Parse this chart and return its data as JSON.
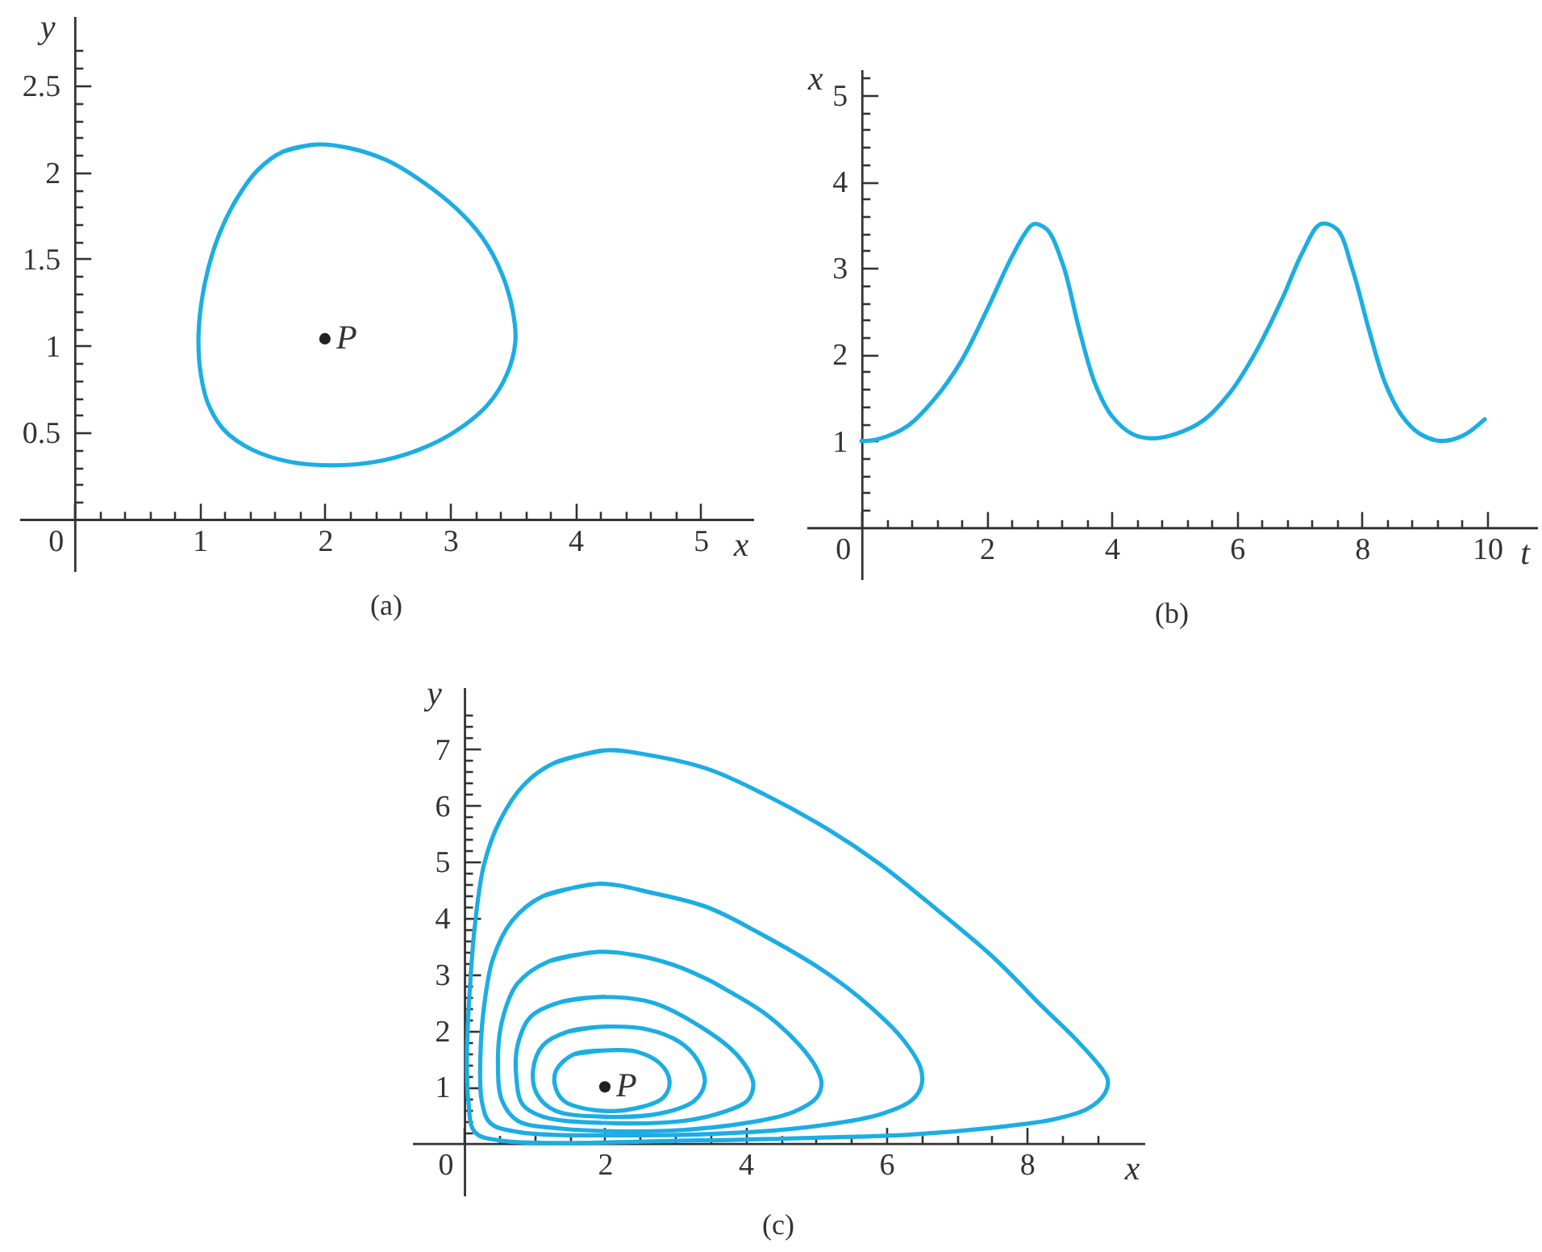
{
  "chart_data": [
    {
      "type": "line",
      "title": "(a)",
      "xlabel": "x",
      "ylabel": "y",
      "xlim": [
        -0.44,
        5.42
      ],
      "ylim": [
        -0.3,
        2.9
      ],
      "xticks": [
        0,
        {
          "value": 0.2,
          "label": null
        },
        {
          "value": 0.4,
          "label": null
        },
        {
          "value": 0.6,
          "label": null
        },
        {
          "value": 0.8,
          "label": null
        },
        1,
        {
          "value": 1.2,
          "label": null
        },
        {
          "value": 1.4,
          "label": null
        },
        {
          "value": 1.6,
          "label": null
        },
        {
          "value": 1.8,
          "label": null
        },
        2,
        {
          "value": 2.2,
          "label": null
        },
        {
          "value": 2.4,
          "label": null
        },
        {
          "value": 2.6,
          "label": null
        },
        {
          "value": 2.8,
          "label": null
        },
        3,
        {
          "value": 3.2,
          "label": null
        },
        {
          "value": 3.4,
          "label": null
        },
        {
          "value": 3.6,
          "label": null
        },
        {
          "value": 3.8,
          "label": null
        },
        4,
        {
          "value": 4.2,
          "label": null
        },
        {
          "value": 4.4,
          "label": null
        },
        {
          "value": 4.6,
          "label": null
        },
        {
          "value": 4.8,
          "label": null
        },
        5
      ],
      "yticks": [
        {
          "value": 0.1,
          "label": null
        },
        {
          "value": 0.2,
          "label": null
        },
        {
          "value": 0.3,
          "label": null
        },
        {
          "value": 0.4,
          "label": null
        },
        0.5,
        {
          "value": 0.6,
          "label": null
        },
        {
          "value": 0.7,
          "label": null
        },
        {
          "value": 0.8,
          "label": null
        },
        {
          "value": 0.9,
          "label": null
        },
        1,
        {
          "value": 1.1,
          "label": null
        },
        {
          "value": 1.2,
          "label": null
        },
        {
          "value": 1.3,
          "label": null
        },
        {
          "value": 1.4,
          "label": null
        },
        1.5,
        {
          "value": 1.6,
          "label": null
        },
        {
          "value": 1.7,
          "label": null
        },
        {
          "value": 1.8,
          "label": null
        },
        {
          "value": 1.9,
          "label": null
        },
        2,
        {
          "value": 2.1,
          "label": null
        },
        {
          "value": 2.2,
          "label": null
        },
        {
          "value": 2.3,
          "label": null
        },
        {
          "value": 2.4,
          "label": null
        },
        2.5,
        {
          "value": 2.6,
          "label": null
        },
        {
          "value": 2.7,
          "label": null
        }
      ],
      "series": [
        {
          "color": "#1cade4",
          "x": [
            1.93,
            1.67,
            1.46,
            1.29,
            1.16,
            1.07,
            1.01,
            0.99,
            1.01,
            1.07,
            1.2,
            1.42,
            1.72,
            2.06,
            2.4,
            2.75,
            3.05,
            3.3,
            3.45,
            3.52,
            3.5,
            3.41,
            3.26,
            3.05,
            2.75,
            2.49,
            2.19,
            1.93,
            1.67
          ],
          "values": [
            2.16,
            2.12,
            2.01,
            1.84,
            1.65,
            1.45,
            1.23,
            1.02,
            0.83,
            0.66,
            0.51,
            0.4,
            0.33,
            0.31,
            0.33,
            0.4,
            0.51,
            0.66,
            0.83,
            1.02,
            1.2,
            1.42,
            1.62,
            1.79,
            1.96,
            2.07,
            2.14,
            2.16,
            2.12
          ]
        },
        {
          "type": "scatter",
          "color": "#231f20",
          "x": [
            2
          ],
          "values": [
            1.04
          ]
        }
      ],
      "annotations": [
        {
          "text": "P",
          "x": 2,
          "y": 1.04
        }
      ]
    },
    {
      "type": "line",
      "title": "(b)",
      "xlabel": "t",
      "ylabel": "x",
      "xlim": [
        -0.88,
        10.8
      ],
      "ylim": [
        -0.6,
        5.3
      ],
      "xticks": [
        0,
        {
          "value": 0.4,
          "label": null
        },
        {
          "value": 0.8,
          "label": null
        },
        {
          "value": 1.2,
          "label": null
        },
        {
          "value": 1.6,
          "label": null
        },
        2,
        {
          "value": 2.4,
          "label": null
        },
        {
          "value": 2.8,
          "label": null
        },
        {
          "value": 3.2,
          "label": null
        },
        {
          "value": 3.6,
          "label": null
        },
        4,
        {
          "value": 4.4,
          "label": null
        },
        {
          "value": 4.8,
          "label": null
        },
        {
          "value": 5.2,
          "label": null
        },
        {
          "value": 5.6,
          "label": null
        },
        6,
        {
          "value": 6.4,
          "label": null
        },
        {
          "value": 6.8,
          "label": null
        },
        {
          "value": 7.2,
          "label": null
        },
        {
          "value": 7.6,
          "label": null
        },
        8,
        {
          "value": 8.4,
          "label": null
        },
        {
          "value": 8.8,
          "label": null
        },
        {
          "value": 9.2,
          "label": null
        },
        {
          "value": 9.6,
          "label": null
        },
        10
      ],
      "yticks": [
        {
          "value": 0.2,
          "label": null
        },
        {
          "value": 0.4,
          "label": null
        },
        {
          "value": 0.6,
          "label": null
        },
        {
          "value": 0.8,
          "label": null
        },
        1,
        {
          "value": 1.2,
          "label": null
        },
        {
          "value": 1.4,
          "label": null
        },
        {
          "value": 1.6,
          "label": null
        },
        {
          "value": 1.8,
          "label": null
        },
        2,
        {
          "value": 2.2,
          "label": null
        },
        {
          "value": 2.4,
          "label": null
        },
        {
          "value": 2.6,
          "label": null
        },
        {
          "value": 2.8,
          "label": null
        },
        3,
        {
          "value": 3.2,
          "label": null
        },
        {
          "value": 3.4,
          "label": null
        },
        {
          "value": 3.6,
          "label": null
        },
        {
          "value": 3.8,
          "label": null
        },
        4,
        {
          "value": 4.2,
          "label": null
        },
        {
          "value": 4.4,
          "label": null
        },
        {
          "value": 4.6,
          "label": null
        },
        {
          "value": 4.8,
          "label": null
        },
        5,
        {
          "value": 5.2,
          "label": null
        }
      ],
      "series": [
        {
          "color": "#1cade4",
          "x": [
            0,
            0.26,
            0.73,
            1.16,
            1.59,
            2.02,
            2.36,
            2.62,
            2.75,
            2.96,
            3.22,
            3.48,
            3.73,
            3.99,
            4.33,
            4.64,
            5.02,
            5.45,
            5.88,
            6.31,
            6.74,
            7.04,
            7.34,
            7.6,
            7.85,
            8.11,
            8.37,
            8.63,
            8.93,
            9.27,
            9.61,
            9.96
          ],
          "values": [
            1.0,
            1.02,
            1.17,
            1.48,
            1.92,
            2.54,
            3.07,
            3.41,
            3.51,
            3.45,
            3.04,
            2.29,
            1.67,
            1.3,
            1.08,
            1.03,
            1.08,
            1.23,
            1.55,
            2.04,
            2.67,
            3.17,
            3.51,
            3.45,
            2.98,
            2.29,
            1.67,
            1.3,
            1.08,
            1.0,
            1.06,
            1.25
          ]
        }
      ]
    },
    {
      "type": "line",
      "title": "(c)",
      "xlabel": "x",
      "ylabel": "y",
      "xlim": [
        -0.74,
        9.67
      ],
      "ylim": [
        -0.93,
        8.1
      ],
      "xticks": [
        0,
        {
          "value": 0.5,
          "label": null
        },
        {
          "value": 1,
          "label": null
        },
        {
          "value": 1.5,
          "label": null
        },
        2,
        {
          "value": 2.5,
          "label": null
        },
        {
          "value": 3,
          "label": null
        },
        {
          "value": 3.5,
          "label": null
        },
        4,
        {
          "value": 4.5,
          "label": null
        },
        {
          "value": 5,
          "label": null
        },
        {
          "value": 5.5,
          "label": null
        },
        6,
        {
          "value": 6.5,
          "label": null
        },
        {
          "value": 7,
          "label": null
        },
        {
          "value": 7.5,
          "label": null
        },
        8,
        {
          "value": 8.5,
          "label": null
        },
        {
          "value": 9,
          "label": null
        }
      ],
      "yticks": [
        {
          "value": 0.2,
          "label": null
        },
        {
          "value": 0.4,
          "label": null
        },
        {
          "value": 0.6,
          "label": null
        },
        {
          "value": 0.8,
          "label": null
        },
        1,
        {
          "value": 1.2,
          "label": null
        },
        {
          "value": 1.4,
          "label": null
        },
        {
          "value": 1.6,
          "label": null
        },
        {
          "value": 1.8,
          "label": null
        },
        2,
        {
          "value": 2.2,
          "label": null
        },
        {
          "value": 2.4,
          "label": null
        },
        {
          "value": 2.6,
          "label": null
        },
        {
          "value": 2.8,
          "label": null
        },
        3,
        {
          "value": 3.2,
          "label": null
        },
        {
          "value": 3.4,
          "label": null
        },
        {
          "value": 3.6,
          "label": null
        },
        {
          "value": 3.8,
          "label": null
        },
        4,
        {
          "value": 4.2,
          "label": null
        },
        {
          "value": 4.4,
          "label": null
        },
        {
          "value": 4.6,
          "label": null
        },
        {
          "value": 4.8,
          "label": null
        },
        5,
        {
          "value": 5.2,
          "label": null
        },
        {
          "value": 5.4,
          "label": null
        },
        {
          "value": 5.6,
          "label": null
        },
        {
          "value": 5.8,
          "label": null
        },
        6,
        {
          "value": 6.2,
          "label": null
        },
        {
          "value": 6.4,
          "label": null
        },
        {
          "value": 6.6,
          "label": null
        },
        {
          "value": 6.8,
          "label": null
        },
        7,
        {
          "value": 7.2,
          "label": null
        },
        {
          "value": 7.4,
          "label": null
        },
        {
          "value": 7.6,
          "label": null
        }
      ],
      "series": [
        {
          "color": "#1cade4",
          "x": [
            2.04,
            1.56,
            1.31,
            1.29,
            1.42,
            1.91,
            2.44,
            2.83,
            2.92,
            2.79,
            2.44,
            2.04,
            1.56
          ],
          "values": [
            1.65,
            1.58,
            1.3,
            1.03,
            0.75,
            0.58,
            0.62,
            0.81,
            1.1,
            1.41,
            1.63,
            1.65,
            1.58
          ]
        },
        {
          "color": "#1cade4",
          "x": [
            2.0,
            1.47,
            1.12,
            0.98,
            1.04,
            1.29,
            2.0,
            2.79,
            3.27,
            3.42,
            3.32,
            3.06,
            2.61,
            2.0,
            1.47
          ],
          "values": [
            2.07,
            1.98,
            1.74,
            1.3,
            0.86,
            0.58,
            0.47,
            0.53,
            0.75,
            1.08,
            1.47,
            1.8,
            2.02,
            2.07,
            1.98
          ]
        },
        {
          "color": "#1cade4",
          "x": [
            2.0,
            1.38,
            0.94,
            0.76,
            0.74,
            0.83,
            1.12,
            2.0,
            3.14,
            3.7,
            4.03,
            4.11,
            4.07,
            3.87,
            3.46,
            2.7,
            2.0,
            1.38
          ],
          "values": [
            2.6,
            2.51,
            2.24,
            1.74,
            1.19,
            0.69,
            0.47,
            0.36,
            0.4,
            0.56,
            0.76,
            1.02,
            1.22,
            1.58,
            1.99,
            2.49,
            2.6,
            2.51
          ]
        },
        {
          "color": "#1cade4",
          "x": [
            1.91,
            1.2,
            0.76,
            0.54,
            0.48,
            0.54,
            0.76,
            1.38,
            2.88,
            4.11,
            4.69,
            5.01,
            5.08,
            5.01,
            4.77,
            4.28,
            3.75,
            3.46,
            2.97,
            2.44,
            1.91,
            1.2
          ],
          "values": [
            3.4,
            3.23,
            2.84,
            2.18,
            1.41,
            0.75,
            0.4,
            0.26,
            0.22,
            0.38,
            0.56,
            0.81,
            1.07,
            1.33,
            1.74,
            2.3,
            2.71,
            2.91,
            3.17,
            3.34,
            3.4,
            3.23
          ]
        },
        {
          "color": "#1cade4",
          "x": [
            1.91,
            1.12,
            0.68,
            0.41,
            0.28,
            0.23,
            0.25,
            0.37,
            0.76,
            2.44,
            4.11,
            5.1,
            5.91,
            6.36,
            6.5,
            6.49,
            6.24,
            5.75,
            5.1,
            4.2,
            3.46,
            2.7,
            1.91,
            1.12
          ],
          "values": [
            4.61,
            4.39,
            3.95,
            3.28,
            2.4,
            1.52,
            0.75,
            0.36,
            0.2,
            0.14,
            0.2,
            0.32,
            0.51,
            0.76,
            1.02,
            1.33,
            1.84,
            2.45,
            3.07,
            3.73,
            4.19,
            4.44,
            4.61,
            4.39
          ]
        },
        {
          "color": "#1cade4",
          "x": [
            2.0,
            1.29,
            0.85,
            0.5,
            0.28,
            0.15,
            0.08,
            0.04,
            0.06,
            0.15,
            0.5,
            3.3,
            5.1,
            6.32,
            7.55,
            8.37,
            8.86,
            9.1,
            9.15,
            9.06,
            8.7,
            8.2,
            7.55,
            6.73,
            5.91,
            5.18,
            4.28,
            3.46,
            2.61,
            2.0,
            1.29
          ],
          "values": [
            6.98,
            6.76,
            6.37,
            5.71,
            4.94,
            3.84,
            2.73,
            1.63,
            0.75,
            0.2,
            0.05,
            0.05,
            0.1,
            0.15,
            0.28,
            0.42,
            0.61,
            0.87,
            1.12,
            1.33,
            1.84,
            2.45,
            3.27,
            4.14,
            4.96,
            5.57,
            6.19,
            6.65,
            6.9,
            6.98,
            6.76
          ]
        },
        {
          "type": "scatter",
          "color": "#231f20",
          "x": [
            2
          ],
          "values": [
            1
          ]
        }
      ],
      "annotations": [
        {
          "text": "P",
          "x": 2,
          "y": 1
        }
      ]
    }
  ]
}
